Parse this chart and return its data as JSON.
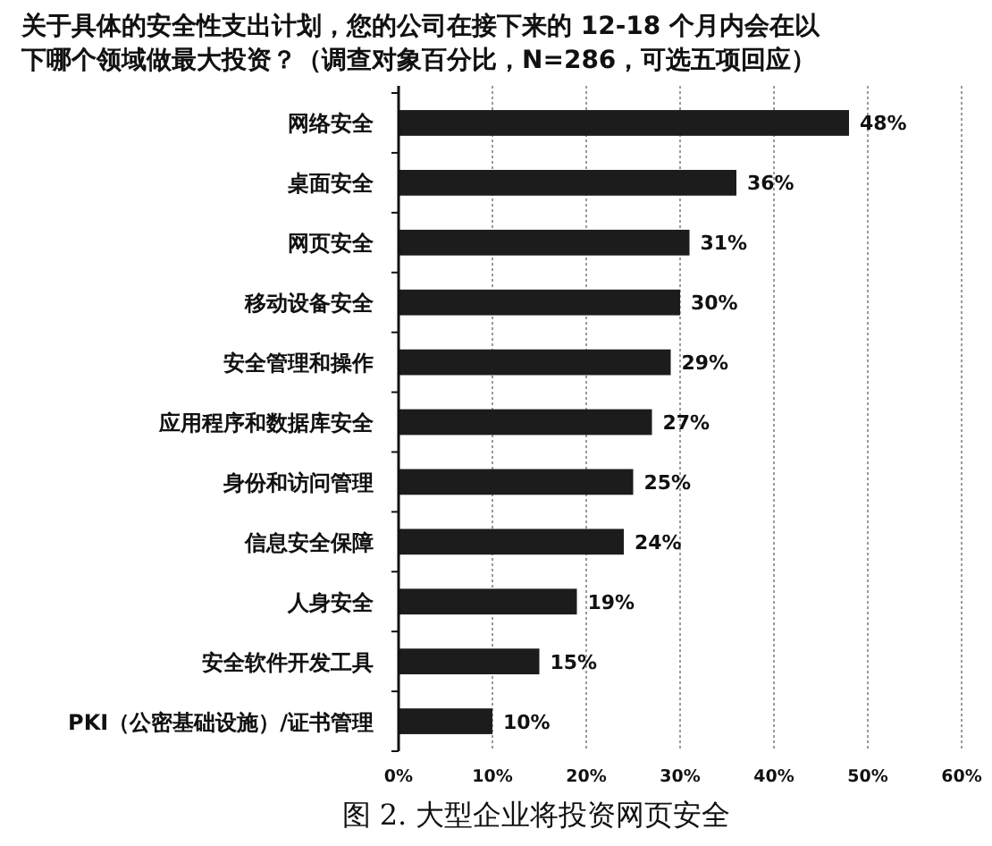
{
  "chart_data": {
    "type": "bar",
    "orientation": "horizontal",
    "title": "关于具体的安全性支出计划，您的公司在接下来的 12-18 个月内会在以下哪个领域做最大投资？（调查对象百分比，N=286，可选五项回应）",
    "annotations": [
      "图 2. 大型企业将投资网页安全"
    ],
    "categories": [
      "网络安全",
      "桌面安全",
      "网页安全",
      "移动设备安全",
      "安全管理和操作",
      "应用程序和数据库安全",
      "身份和访问管理",
      "信息安全保障",
      "人身安全",
      "安全软件开发工具",
      "PKI（公密基础设施）/证书管理"
    ],
    "values": [
      48,
      36,
      31,
      30,
      29,
      27,
      25,
      24,
      19,
      15,
      10
    ],
    "value_labels": [
      "48%",
      "36%",
      "31%",
      "30%",
      "29%",
      "27%",
      "25%",
      "24%",
      "19%",
      "15%",
      "10%"
    ],
    "color": "#1c1c1c",
    "xlim": [
      0,
      60
    ],
    "xticks": [
      {
        "value": 0,
        "label": "0%"
      },
      {
        "value": 10,
        "label": "10%"
      },
      {
        "value": 20,
        "label": "20%"
      },
      {
        "value": 30,
        "label": "30%"
      },
      {
        "value": 40,
        "label": "40%"
      },
      {
        "value": 50,
        "label": "50%"
      },
      {
        "value": 60,
        "label": "60%"
      }
    ],
    "grid": "x"
  }
}
